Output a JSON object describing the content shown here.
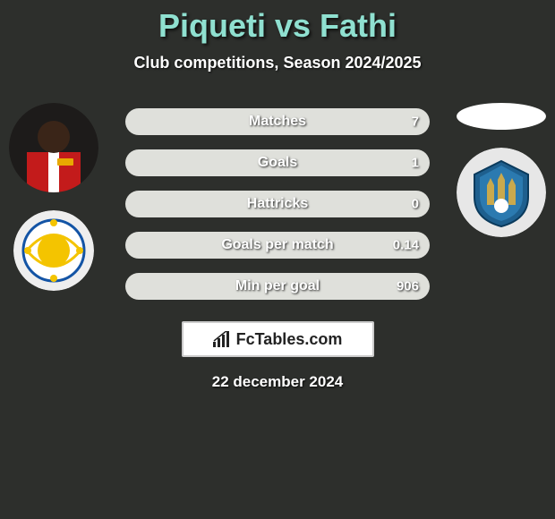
{
  "colors": {
    "background": "#2d2f2c",
    "title": "#8fe0d0",
    "subtitle": "#ffffff",
    "stat_bg": "#dfe0db",
    "stat_label": "#ffffff",
    "stat_value": "#ffffff",
    "brand_bg": "#ffffff",
    "brand_border": "#cccccc",
    "brand_text": "#222222",
    "date": "#ffffff"
  },
  "title": "Piqueti vs Fathi",
  "subtitle": "Club competitions, Season 2024/2025",
  "date": "22 december 2024",
  "brand": "FcTables.com",
  "player_left": {
    "avatar_bg": "#1d1b1a",
    "club_bg": "#eeeeee"
  },
  "player_right": {
    "avatar_bg": "#ffffff",
    "club_bg": "#e7e7e7"
  },
  "stats": [
    {
      "label": "Matches",
      "value_right": "7",
      "left_pct": 0,
      "right_pct": 100
    },
    {
      "label": "Goals",
      "value_right": "1",
      "left_pct": 0,
      "right_pct": 100
    },
    {
      "label": "Hattricks",
      "value_right": "0",
      "left_pct": 0,
      "right_pct": 100
    },
    {
      "label": "Goals per match",
      "value_right": "0.14",
      "left_pct": 0,
      "right_pct": 100
    },
    {
      "label": "Min per goal",
      "value_right": "906",
      "left_pct": 0,
      "right_pct": 100
    }
  ]
}
